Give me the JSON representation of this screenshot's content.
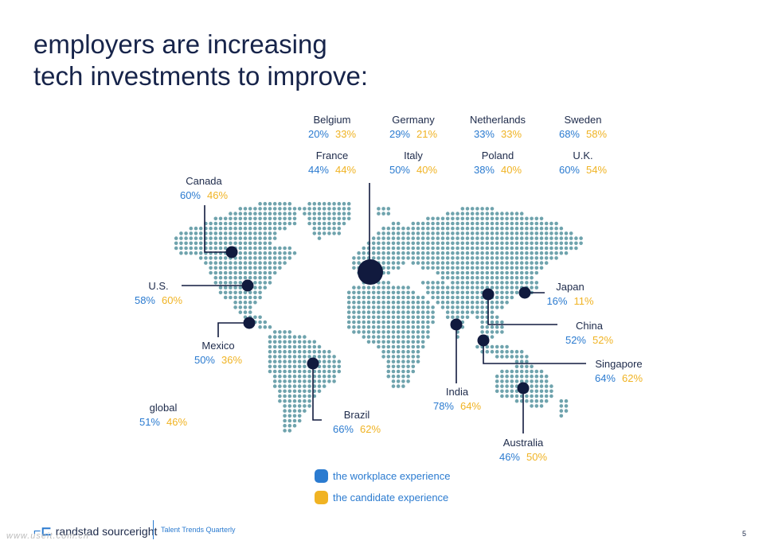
{
  "title": {
    "line1": "employers are increasing",
    "line2": "tech investments to improve:"
  },
  "colors": {
    "dots": "#6fa3ad",
    "markers": "#111a3e",
    "workplace": "#2b7bd0",
    "candidate": "#f0b323"
  },
  "countries": {
    "belgium": {
      "name": "Belgium",
      "workplace": "20%",
      "candidate": "33%"
    },
    "germany": {
      "name": "Germany",
      "workplace": "29%",
      "candidate": "21%"
    },
    "netherlands": {
      "name": "Netherlands",
      "workplace": "33%",
      "candidate": "33%"
    },
    "sweden": {
      "name": "Sweden",
      "workplace": "68%",
      "candidate": "58%"
    },
    "france": {
      "name": "France",
      "workplace": "44%",
      "candidate": "44%"
    },
    "italy": {
      "name": "Italy",
      "workplace": "50%",
      "candidate": "40%"
    },
    "poland": {
      "name": "Poland",
      "workplace": "38%",
      "candidate": "40%"
    },
    "uk": {
      "name": "U.K.",
      "workplace": "60%",
      "candidate": "54%"
    },
    "canada": {
      "name": "Canada",
      "workplace": "60%",
      "candidate": "46%"
    },
    "us": {
      "name": "U.S.",
      "workplace": "58%",
      "candidate": "60%"
    },
    "mexico": {
      "name": "Mexico",
      "workplace": "50%",
      "candidate": "36%"
    },
    "global": {
      "name": "global",
      "workplace": "51%",
      "candidate": "46%"
    },
    "brazil": {
      "name": "Brazil",
      "workplace": "66%",
      "candidate": "62%"
    },
    "india": {
      "name": "India",
      "workplace": "78%",
      "candidate": "64%"
    },
    "japan": {
      "name": "Japan",
      "workplace": "16%",
      "candidate": "11%"
    },
    "china": {
      "name": "China",
      "workplace": "52%",
      "candidate": "52%"
    },
    "singapore": {
      "name": "Singapore",
      "workplace": "64%",
      "candidate": "62%"
    },
    "australia": {
      "name": "Australia",
      "workplace": "46%",
      "candidate": "50%"
    }
  },
  "legend": {
    "workplace": "the workplace experience",
    "candidate": "the candidate experience"
  },
  "footer": {
    "brand": "randstad sourceright",
    "publication": "Talent Trends Quarterly",
    "page": "5",
    "watermark": "www.useit.com.cn"
  }
}
